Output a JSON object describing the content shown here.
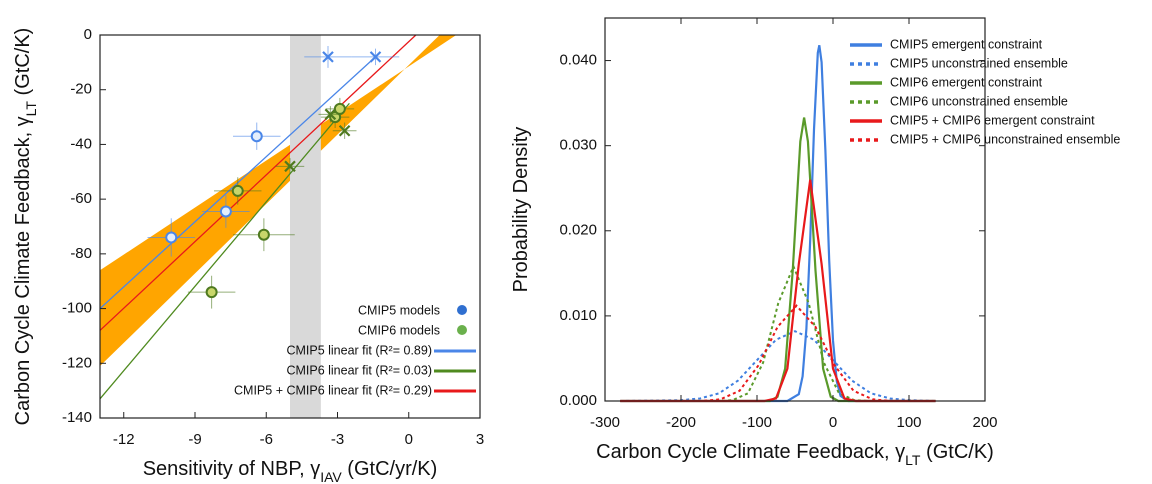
{
  "chart_data": [
    {
      "type": "scatter",
      "xlabel": {
        "text": "Sensitivity of NBP, γ",
        "sub": "IAV",
        "unit": " (GtC/yr/K)"
      },
      "ylabel": {
        "text": "Carbon Cycle Climate Feedback, γ",
        "sub": "LT",
        "unit": " (GtC/K)"
      },
      "xlim": [
        -13,
        3
      ],
      "ylim": [
        -140,
        0
      ],
      "xticks": [
        -12,
        -9,
        -6,
        -3,
        0,
        3
      ],
      "yticks": [
        0,
        -20,
        -40,
        -60,
        -80,
        -100,
        -120,
        -140
      ],
      "uncertainty_band": {
        "color": "#ffa500",
        "x": [
          -13,
          2,
          1.3,
          -13
        ],
        "values": [
          -86,
          0,
          0,
          -121
        ]
      },
      "observation_band": {
        "color": "#d9d9d9",
        "x": [
          -5,
          -3.7
        ]
      },
      "series": [
        {
          "name": "CMIP5 models",
          "color": "#4a86e8",
          "legend_color": "#2f6fd0",
          "marker_fill": "#e4eefc",
          "x": [
            -10,
            -7.7,
            -6.4,
            -3.4,
            -1.4
          ],
          "values": [
            -74,
            -64.5,
            -37,
            -8,
            -8
          ],
          "xerr": [
            1,
            1,
            1,
            1,
            1
          ],
          "yerr": [
            7,
            6,
            5,
            4,
            3
          ],
          "markers": [
            "circle",
            "circle",
            "circle",
            "cross",
            "cross"
          ]
        },
        {
          "name": "CMIP6 models",
          "color": "#4f7a1f",
          "legend_color": "#6ab04c",
          "marker_fill": "#c8d66a",
          "x": [
            -7.2,
            -6.1,
            -8.3,
            -5,
            -3.1,
            -2.9,
            -2.7,
            -3.3
          ],
          "values": [
            -57,
            -73,
            -94,
            -48,
            -30,
            -27,
            -35,
            -29
          ],
          "xerr": [
            1,
            1.3,
            1,
            0.6,
            0.6,
            0.6,
            0.5,
            0.5
          ],
          "yerr": [
            5,
            6,
            6,
            3,
            4,
            4,
            3,
            3
          ],
          "markers": [
            "circle",
            "circle",
            "circle",
            "cross",
            "circle",
            "circle",
            "cross",
            "cross"
          ]
        }
      ],
      "fits": [
        {
          "name": "CMIP5 linear fit (R²= 0.89)",
          "color": "#4a86e8",
          "x": [
            -13,
            -1.4
          ],
          "values": [
            -100,
            -8
          ]
        },
        {
          "name": "CMIP6 linear fit (R²= 0.03)",
          "color": "#4f8a1f",
          "x": [
            -13,
            -2.5
          ],
          "values": [
            -133,
            -25
          ]
        },
        {
          "name": "CMIP5 + CMIP6 linear fit (R²= 0.29)",
          "color": "#e8191b",
          "x": [
            -13,
            0.3
          ],
          "values": [
            -108,
            0
          ]
        }
      ]
    },
    {
      "type": "line",
      "mirror_ticks": true,
      "xlabel": {
        "text": "Carbon Cycle Climate Feedback, γ",
        "sub": "LT",
        "unit": " (GtC/K)"
      },
      "ylabel": {
        "text": "Probability Density"
      },
      "xlim": [
        -300,
        200
      ],
      "ylim": [
        0,
        0.045
      ],
      "xticks": [
        -300,
        -200,
        -100,
        0,
        100,
        200
      ],
      "yticks": [
        {
          "value": 0,
          "label": "0.000"
        },
        {
          "value": 0.01,
          "label": "0.010"
        },
        {
          "value": 0.02,
          "label": "0.020"
        },
        {
          "value": 0.03,
          "label": "0.030"
        },
        {
          "value": 0.04,
          "label": "0.040"
        }
      ],
      "series": [
        {
          "name": "CMIP5 emergent constraint",
          "color": "#3f7fe0",
          "dashed": false,
          "x": [
            -280,
            -60,
            -45,
            -40,
            -35,
            -30,
            -25,
            -20,
            -18,
            -15,
            -10,
            -5,
            0,
            5,
            10,
            20,
            135
          ],
          "values": [
            0,
            0,
            0.0008,
            0.0029,
            0.0085,
            0.0189,
            0.0319,
            0.0409,
            0.0418,
            0.0398,
            0.0294,
            0.0165,
            0.0071,
            0.0023,
            0.0006,
            0,
            0
          ]
        },
        {
          "name": "CMIP5 unconstrained ensemble",
          "color": "#3f7fe0",
          "dashed": true,
          "x": [
            -280,
            -200,
            -175,
            -150,
            -125,
            -100,
            -75,
            -50,
            -25,
            0,
            25,
            50,
            75,
            100,
            135
          ],
          "values": [
            0,
            0.0001,
            0.0003,
            0.0009,
            0.0024,
            0.0048,
            0.0072,
            0.0082,
            0.0072,
            0.0048,
            0.0024,
            0.0009,
            0.0003,
            0.0001,
            0
          ]
        },
        {
          "name": "CMIP6 emergent constraint",
          "color": "#5a9a2a",
          "dashed": false,
          "x": [
            -280,
            -83,
            -73,
            -63,
            -53,
            -43,
            -38,
            -33,
            -23,
            -13,
            -3,
            7,
            135
          ],
          "values": [
            0,
            0,
            0.0005,
            0.0038,
            0.0153,
            0.0305,
            0.0333,
            0.0305,
            0.0153,
            0.0038,
            0.0005,
            0,
            0
          ]
        },
        {
          "name": "CMIP6 unconstrained ensemble",
          "color": "#5a9a2a",
          "dashed": true,
          "x": [
            -280,
            -152,
            -132,
            -112,
            -92,
            -72,
            -52,
            -32,
            -12,
            8,
            28,
            48,
            135
          ],
          "values": [
            0,
            0,
            0.0001,
            0.0009,
            0.0045,
            0.0115,
            0.0158,
            0.0115,
            0.0045,
            0.0009,
            0.0001,
            0,
            0
          ]
        },
        {
          "name": "CMIP5 + CMIP6 emergent constraint",
          "color": "#e8191b",
          "dashed": false,
          "x": [
            -280,
            -90,
            -75,
            -60,
            -45,
            -30,
            -15,
            0,
            15,
            30,
            135
          ],
          "values": [
            0,
            0,
            0.0003,
            0.0038,
            0.0161,
            0.026,
            0.0161,
            0.0038,
            0.0003,
            0,
            0
          ]
        },
        {
          "name": "CMIP5 + CMIP6 unconstrained ensemble",
          "color": "#e8191b",
          "dashed": true,
          "x": [
            -280,
            -173,
            -148,
            -123,
            -98,
            -73,
            -48,
            -23,
            2,
            27,
            52,
            77,
            135
          ],
          "values": [
            0,
            0,
            0.0002,
            0.0012,
            0.0042,
            0.0087,
            0.0112,
            0.0087,
            0.0042,
            0.0012,
            0.0002,
            0,
            0
          ]
        }
      ]
    }
  ]
}
